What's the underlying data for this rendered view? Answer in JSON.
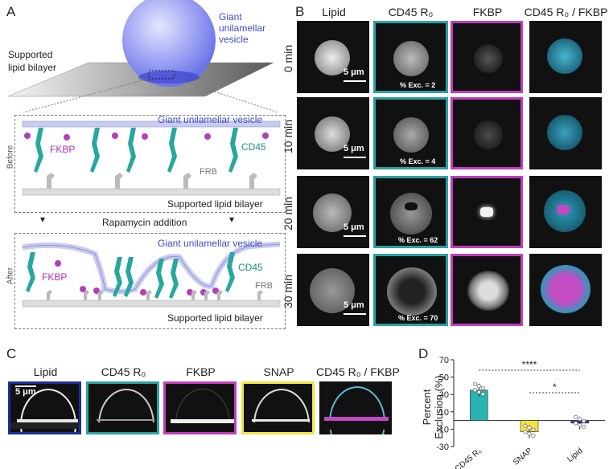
{
  "panels": {
    "a": "A",
    "b": "B",
    "c": "C",
    "d": "D"
  },
  "schematic": {
    "guv_label": "Giant\nunilamellar\nvesicle",
    "guv_l1": "Giant",
    "guv_l2": "unilamellar",
    "guv_l3": "vesicle",
    "slb_l1": "Supported",
    "slb_l2": "lipid bilayer",
    "before": "Before",
    "after": "After",
    "guv_text": "Giant unilamellar vesicle",
    "slb_text": "Supported lipid bilayer",
    "fkbp": "FKBP",
    "cd45": "CD45",
    "frb": "FRB",
    "rapamycin": "Rapamycin addition"
  },
  "b_panel": {
    "columns": [
      "Lipid",
      "CD45 R₀",
      "FKBP",
      "CD45 R₀ / FKBP"
    ],
    "rows": [
      {
        "time": "0 min",
        "exc": "% Exc. = 2",
        "scale": "5 μm"
      },
      {
        "time": "10 min",
        "exc": "% Exc. = 4",
        "scale": "5 μm"
      },
      {
        "time": "20 min",
        "exc": "% Exc. = 62",
        "scale": "5 μm"
      },
      {
        "time": "30 min",
        "exc": "% Exc. = 70",
        "scale": "5 μm"
      }
    ]
  },
  "c_panel": {
    "columns": [
      "Lipid",
      "CD45 R₀",
      "FKBP",
      "SNAP",
      "CD45 R₀ / FKBP"
    ],
    "scale": "5 μm"
  },
  "colors": {
    "teal": "#2aa3a0",
    "magenta": "#c13cc0",
    "blue": "#2b3fa8",
    "yellow": "#f2e641",
    "lipid_border": "#1f2d9e"
  },
  "chart_data": {
    "type": "bar",
    "categories": [
      "CD45 R₀",
      "SNAP",
      "Lipid"
    ],
    "values": [
      35,
      -13,
      -3
    ],
    "colors": [
      "#2ab3b0",
      "#f5e33a",
      "#2f3fc0"
    ],
    "ylabel": "Percent\nExclusion (%)",
    "ylabel_l1": "Percent",
    "ylabel_l2": "Exclusion (%)",
    "ylim": [
      -30,
      70
    ],
    "yticks": [
      -30,
      -10,
      10,
      30,
      50,
      70
    ],
    "significance": [
      "****",
      "*"
    ]
  }
}
